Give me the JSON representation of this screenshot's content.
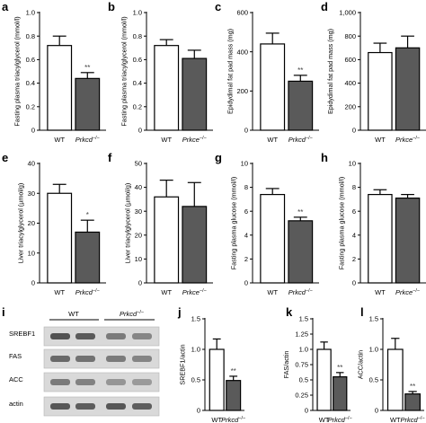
{
  "colors": {
    "wt_bar": "#ffffff",
    "ko_bar": "#5a5a5a",
    "axis": "#000000"
  },
  "chart_data": [
    {
      "panel": "a",
      "type": "bar",
      "ylabel": "Fasting plasma triacylglycerol (mmol/l)",
      "ylim": [
        0,
        1.0
      ],
      "yticks": [
        "0",
        "0.2",
        "0.4",
        "0.6",
        "0.8",
        "1.0"
      ],
      "categories": [
        "WT",
        "Prkcd"
      ],
      "values": [
        0.72,
        0.44
      ],
      "errors": [
        0.08,
        0.05
      ],
      "sig": [
        "",
        "**"
      ]
    },
    {
      "panel": "b",
      "type": "bar",
      "ylabel": "Fasting plasma triacylglycerol (mmol/l)",
      "ylim": [
        0,
        1.0
      ],
      "yticks": [
        "0",
        "0.2",
        "0.4",
        "0.6",
        "0.8",
        "1.0"
      ],
      "categories": [
        "WT",
        "Prkce"
      ],
      "values": [
        0.72,
        0.61
      ],
      "errors": [
        0.05,
        0.07
      ],
      "sig": [
        "",
        ""
      ]
    },
    {
      "panel": "c",
      "type": "bar",
      "ylabel": "Epidydimal fat pad mass (mg)",
      "ylim": [
        0,
        600
      ],
      "yticks": [
        "0",
        "200",
        "400",
        "600"
      ],
      "categories": [
        "WT",
        "Prkcd"
      ],
      "values": [
        440,
        250
      ],
      "errors": [
        55,
        30
      ],
      "sig": [
        "",
        "**"
      ]
    },
    {
      "panel": "d",
      "type": "bar",
      "ylabel": "Epidydimal fat pad mass (mg)",
      "ylim": [
        0,
        1000
      ],
      "yticks": [
        "0",
        "200",
        "400",
        "600",
        "800",
        "1,000"
      ],
      "categories": [
        "WT",
        "Prkce"
      ],
      "values": [
        660,
        700
      ],
      "errors": [
        80,
        100
      ],
      "sig": [
        "",
        ""
      ]
    },
    {
      "panel": "e",
      "type": "bar",
      "ylabel": "Liver triacylglycerol (µmol/g)",
      "ylim": [
        0,
        40
      ],
      "yticks": [
        "0",
        "10",
        "20",
        "30",
        "40"
      ],
      "categories": [
        "WT",
        "Prkcd"
      ],
      "values": [
        30,
        17
      ],
      "errors": [
        3,
        4
      ],
      "sig": [
        "",
        "*"
      ]
    },
    {
      "panel": "f",
      "type": "bar",
      "ylabel": "Liver triacylglycerol (µmol/g)",
      "ylim": [
        0,
        50
      ],
      "yticks": [
        "0",
        "10",
        "20",
        "30",
        "40",
        "50"
      ],
      "categories": [
        "WT",
        "Prkce"
      ],
      "values": [
        36,
        32
      ],
      "errors": [
        7,
        10
      ],
      "sig": [
        "",
        ""
      ]
    },
    {
      "panel": "g",
      "type": "bar",
      "ylabel": "Fasting plasma glucose (mmol/l)",
      "ylim": [
        0,
        10
      ],
      "yticks": [
        "0",
        "2",
        "4",
        "6",
        "8",
        "10"
      ],
      "categories": [
        "WT",
        "Prkcd"
      ],
      "values": [
        7.4,
        5.2
      ],
      "errors": [
        0.5,
        0.3
      ],
      "sig": [
        "",
        "**"
      ]
    },
    {
      "panel": "h",
      "type": "bar",
      "ylabel": "Fasting plasma glucose (mmol/l)",
      "ylim": [
        0,
        10
      ],
      "yticks": [
        "0",
        "2",
        "4",
        "6",
        "8",
        "10"
      ],
      "categories": [
        "WT",
        "Prkce"
      ],
      "values": [
        7.4,
        7.1
      ],
      "errors": [
        0.4,
        0.3
      ],
      "sig": [
        "",
        ""
      ]
    },
    {
      "panel": "j",
      "type": "bar",
      "ylabel": "SREBF1/actin",
      "ylim": [
        0,
        1.5
      ],
      "yticks": [
        "0",
        "0.5",
        "1.0",
        "1.5"
      ],
      "categories": [
        "WT",
        "Prkcd"
      ],
      "values": [
        1.0,
        0.49
      ],
      "errors": [
        0.17,
        0.07
      ],
      "sig": [
        "",
        "**"
      ]
    },
    {
      "panel": "k",
      "type": "bar",
      "ylabel": "FAS/actin",
      "ylim": [
        0,
        1.5
      ],
      "yticks": [
        "0",
        "0.25",
        "0.5",
        "0.75",
        "1.0",
        "1.25",
        "1.5"
      ],
      "categories": [
        "WT",
        "Prkcd"
      ],
      "values": [
        1.0,
        0.55
      ],
      "errors": [
        0.12,
        0.07
      ],
      "sig": [
        "",
        "**"
      ]
    },
    {
      "panel": "l",
      "type": "bar",
      "ylabel": "ACC/actin",
      "ylim": [
        0,
        1.5
      ],
      "yticks": [
        "0",
        "0.5",
        "1.0",
        "1.5"
      ],
      "categories": [
        "WT",
        "Prkcd"
      ],
      "values": [
        1.0,
        0.27
      ],
      "errors": [
        0.18,
        0.04
      ],
      "sig": [
        "",
        "**"
      ]
    }
  ],
  "ko_superscript": "−/−",
  "blot": {
    "panel": "i",
    "groups": [
      {
        "label": "WT"
      },
      {
        "label": "Prkcd"
      }
    ],
    "rows": [
      {
        "label": "SREBF1"
      },
      {
        "label": "FAS"
      },
      {
        "label": "ACC"
      },
      {
        "label": "actin"
      }
    ]
  }
}
